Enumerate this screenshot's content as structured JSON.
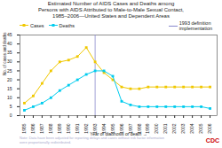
{
  "chart_data": {
    "type": "line",
    "title": "Estimated Number of AIDS Cases and Deaths among\nPersons with AIDS Attributed to Male-to-Male Sexual Contact,\n1985–2006—United States and Dependent Areas",
    "xlabel": "Year of diagnosis or death",
    "ylabel": "No. of cases and deaths (in thousands)",
    "x": [
      1985,
      1986,
      1987,
      1988,
      1989,
      1990,
      1991,
      1992,
      1993,
      1994,
      1995,
      1996,
      1997,
      1998,
      1999,
      2000,
      2001,
      2002,
      2003,
      2004,
      2005,
      2006
    ],
    "series": [
      {
        "name": "Cases",
        "color": "#f0c800",
        "marker": "square",
        "values": [
          7,
          11,
          18,
          25,
          30,
          31,
          33,
          38,
          30,
          24,
          20,
          16,
          15,
          15,
          16,
          16,
          16,
          16,
          16,
          16,
          16,
          16
        ]
      },
      {
        "name": "Deaths",
        "color": "#00ccee",
        "marker": "square",
        "values": [
          3,
          5,
          7,
          10,
          14,
          17,
          20,
          23,
          25,
          25,
          22,
          8,
          6,
          5,
          5,
          5,
          5,
          5,
          5,
          5,
          5,
          4
        ]
      }
    ],
    "vlines": [
      {
        "x": 1993,
        "label": "1993 definition\nimplementation",
        "color": "#8888cc"
      }
    ],
    "annotations": [
      {
        "text": "Note: Data have been adjusted for reporting delays and cases without risk factor information\nwere proportionally redistributed.",
        "color": "#aaaacc"
      },
      {
        "text": "CDC",
        "color": "#cc0000"
      }
    ],
    "xlim": [
      1984.5,
      2006.8
    ],
    "xticks": [
      1985,
      1986,
      1987,
      1988,
      1989,
      1990,
      1991,
      1992,
      1993,
      1994,
      1995,
      1996,
      1997,
      1998,
      1999,
      2000,
      2001,
      2002,
      2003,
      2004,
      2005,
      2006
    ],
    "ylim": [
      0,
      45
    ],
    "yticks": [
      0,
      5,
      10,
      15,
      20,
      25,
      30,
      35,
      40,
      45
    ]
  }
}
